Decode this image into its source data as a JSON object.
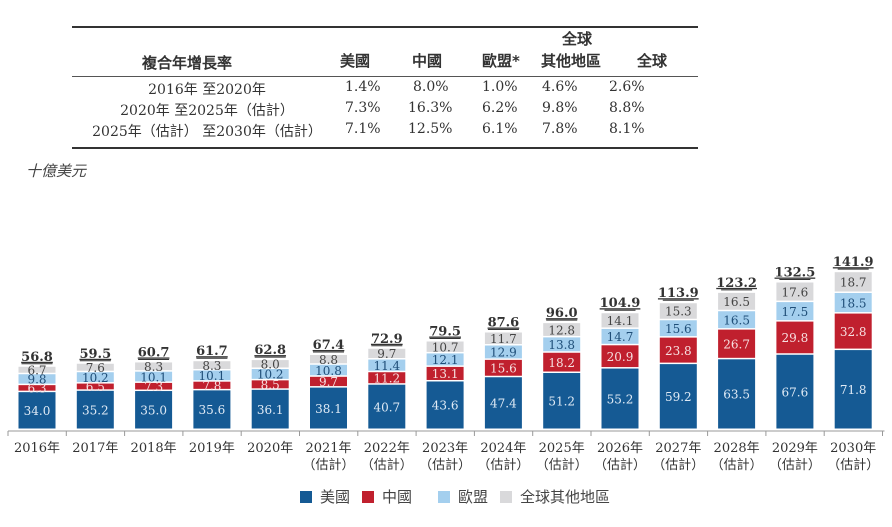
{
  "cagr_table": {
    "title": "複合年增長率",
    "columns": [
      "美國",
      "中國",
      "歐盟*",
      "全球\n其他地區",
      "全球"
    ],
    "column_top": [
      "",
      "",
      "",
      "全球",
      ""
    ],
    "column_bottom": [
      "美國",
      "中國",
      "歐盟*",
      "其他地區",
      "全球"
    ],
    "rows": [
      {
        "label": "2016年 至2020年",
        "values": [
          "1.4%",
          "8.0%",
          "1.0%",
          "4.6%",
          "2.6%"
        ]
      },
      {
        "label": "2020年 至2025年（估計）",
        "values": [
          "7.3%",
          "16.3%",
          "6.2%",
          "9.8%",
          "8.8%"
        ]
      },
      {
        "label": "2025年（估計） 至2030年（估計）",
        "values": [
          "7.1%",
          "12.5%",
          "6.1%",
          "7.8%",
          "8.1%"
        ]
      }
    ]
  },
  "unit_label": "十億美元",
  "colors": {
    "us": "#155a94",
    "china": "#c0202e",
    "eu": "#a4cfee",
    "row": "#d9d9db"
  },
  "chart_data": {
    "type": "bar",
    "stacked": true,
    "title": "",
    "ylabel": "十億美元",
    "xlabel": "",
    "ylim": [
      0,
      145
    ],
    "grid": false,
    "legend_position": "bottom",
    "categories": [
      "2016年",
      "2017年",
      "2018年",
      "2019年",
      "2020年",
      "2021年\n（估計）",
      "2022年\n（估計）",
      "2023年\n（估計）",
      "2024年\n（估計）",
      "2025年\n（估計）",
      "2026年\n（估計）",
      "2027年\n（估計）",
      "2028年\n（估計）",
      "2029年\n（估計）",
      "2030年\n（估計）"
    ],
    "category_lines": [
      [
        "2016年",
        ""
      ],
      [
        "2017年",
        ""
      ],
      [
        "2018年",
        ""
      ],
      [
        "2019年",
        ""
      ],
      [
        "2020年",
        ""
      ],
      [
        "2021年",
        "（估計）"
      ],
      [
        "2022年",
        "（估計）"
      ],
      [
        "2023年",
        "（估計）"
      ],
      [
        "2024年",
        "（估計）"
      ],
      [
        "2025年",
        "（估計）"
      ],
      [
        "2026年",
        "（估計）"
      ],
      [
        "2027年",
        "（估計）"
      ],
      [
        "2028年",
        "（估計）"
      ],
      [
        "2029年",
        "（估計）"
      ],
      [
        "2030年",
        "（估計）"
      ]
    ],
    "series": [
      {
        "name": "美國",
        "key": "us",
        "values": [
          34.0,
          35.2,
          35.0,
          35.6,
          36.1,
          38.1,
          40.7,
          43.6,
          47.4,
          51.2,
          55.2,
          59.2,
          63.5,
          67.6,
          71.8
        ]
      },
      {
        "name": "中國",
        "key": "china",
        "values": [
          6.3,
          6.5,
          7.3,
          7.8,
          8.5,
          9.7,
          11.2,
          13.1,
          15.6,
          18.2,
          20.9,
          23.8,
          26.7,
          29.8,
          32.8
        ]
      },
      {
        "name": "歐盟",
        "key": "eu",
        "values": [
          9.8,
          10.2,
          10.1,
          10.1,
          10.2,
          10.8,
          11.4,
          12.1,
          12.9,
          13.8,
          14.7,
          15.6,
          16.5,
          17.5,
          18.5
        ]
      },
      {
        "name": "全球其他地區",
        "key": "row",
        "values": [
          6.7,
          7.6,
          8.3,
          8.3,
          8.0,
          8.8,
          9.7,
          10.7,
          11.7,
          12.8,
          14.1,
          15.3,
          16.5,
          17.6,
          18.7
        ]
      }
    ],
    "totals": [
      56.8,
      59.5,
      60.7,
      61.7,
      62.8,
      67.4,
      72.9,
      79.5,
      87.6,
      96.0,
      104.9,
      113.9,
      123.2,
      132.5,
      141.9
    ],
    "total_labels": [
      "56.8",
      "59.5",
      "60.7",
      "61.7",
      "62.8",
      "67.4",
      "72.9",
      "79.5",
      "87.6",
      "96.0",
      "104.9",
      "113.9",
      "123.2",
      "132.5",
      "141.9"
    ]
  }
}
